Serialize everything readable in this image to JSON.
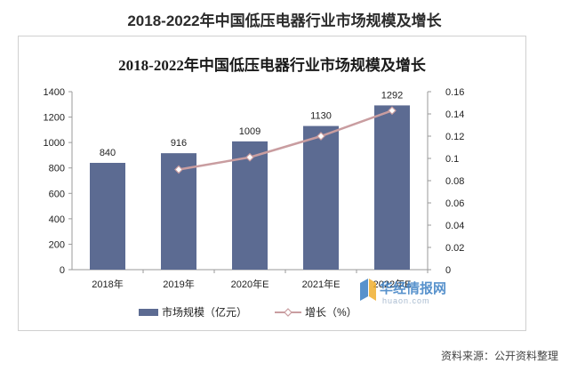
{
  "page": {
    "title": "2018-2022年中国低压电器行业市场规模及增长",
    "source": "资料来源：公开资料整理"
  },
  "watermark": {
    "name": "华经情报网",
    "url": "huaon.com"
  },
  "colors": {
    "bar": "#5c6b92",
    "line": "#c99da0",
    "marker": "#ffffff"
  },
  "chart_data": {
    "type": "bar",
    "title": "2018-2022年中国低压电器行业市场规模及增长",
    "categories": [
      "2018年",
      "2019年",
      "2020年E",
      "2021年E",
      "2022年E"
    ],
    "series": [
      {
        "name": "市场规模（亿元）",
        "type": "bar",
        "axis": "left",
        "values": [
          840,
          916,
          1009,
          1130,
          1292
        ]
      },
      {
        "name": "增长（%）",
        "type": "line",
        "axis": "right",
        "values": [
          null,
          0.09,
          0.101,
          0.12,
          0.143
        ]
      }
    ],
    "data_labels": [
      "840",
      "916",
      "1009",
      "1130",
      "1292"
    ],
    "yleft_ticks": [
      "0",
      "200",
      "400",
      "600",
      "800",
      "1000",
      "1200",
      "1400"
    ],
    "yright_ticks": [
      "0",
      "0.02",
      "0.04",
      "0.06",
      "0.08",
      "0.1",
      "0.12",
      "0.14",
      "0.16"
    ],
    "ylim_left": [
      0,
      1400
    ],
    "ylim_right": [
      0,
      0.16
    ],
    "grid": false,
    "legend_position": "bottom"
  }
}
